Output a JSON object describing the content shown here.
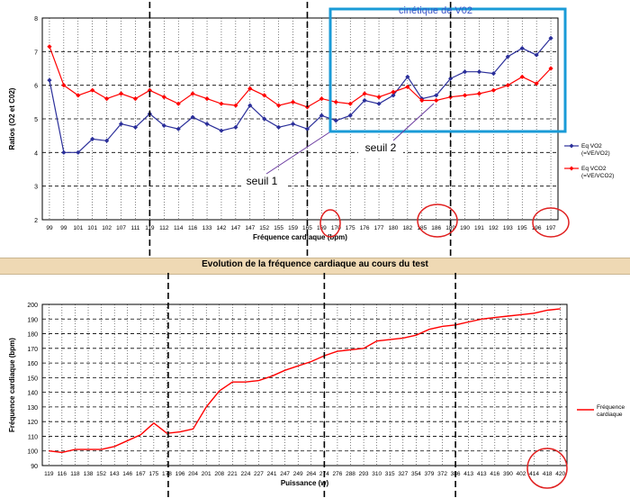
{
  "section_title": "Evolution de la fréquence cardiaque au cours du test",
  "annotations": {
    "box_label": "cinétique de V02",
    "seuil1": "seuil 1",
    "seuil2": "seuil 2"
  },
  "colors": {
    "series_vo2": "#2b2f9a",
    "series_vco2": "#ff0000",
    "hr_line": "#ff0000",
    "box": "#1a9bd7",
    "circle": "#e02020",
    "band": "#efd9b4",
    "grid": "#000000"
  },
  "chart_data": [
    {
      "type": "line",
      "ylabel": "Ratios (O2 et C02)",
      "xlabel": "Fréquence cardiaque (bpm)",
      "ylim": [
        2,
        8
      ],
      "yticks": [
        2,
        3,
        4,
        5,
        6,
        7,
        8
      ],
      "grid": true,
      "legend_position": "right",
      "categories": [
        "99",
        "99",
        "101",
        "101",
        "102",
        "107",
        "111",
        "119",
        "112",
        "114",
        "116",
        "133",
        "142",
        "147",
        "147",
        "152",
        "155",
        "159",
        "165",
        "169",
        "170",
        "175",
        "176",
        "177",
        "180",
        "182",
        "185",
        "186",
        "189",
        "190",
        "191",
        "192",
        "193",
        "195",
        "196",
        "197"
      ],
      "series": [
        {
          "name": "Eq VO2 (=VE/VO2)",
          "values": [
            6.15,
            4.0,
            4.0,
            4.4,
            4.35,
            4.85,
            4.75,
            5.15,
            4.8,
            4.7,
            5.05,
            4.85,
            4.65,
            4.75,
            5.4,
            5.0,
            4.75,
            4.85,
            4.7,
            5.1,
            4.95,
            5.1,
            5.55,
            5.45,
            5.7,
            6.25,
            5.6,
            5.7,
            6.2,
            6.4,
            6.4,
            6.35,
            6.85,
            7.1,
            6.9,
            7.4
          ]
        },
        {
          "name": "Eq VCO2 (=VE/VCO2)",
          "values": [
            7.15,
            6.0,
            5.7,
            5.85,
            5.6,
            5.75,
            5.6,
            5.85,
            5.65,
            5.45,
            5.75,
            5.6,
            5.45,
            5.4,
            5.9,
            5.7,
            5.4,
            5.5,
            5.35,
            5.6,
            5.5,
            5.45,
            5.75,
            5.65,
            5.8,
            5.95,
            5.55,
            5.55,
            5.65,
            5.7,
            5.75,
            5.85,
            6.0,
            6.25,
            6.05,
            6.5
          ]
        }
      ]
    },
    {
      "type": "line",
      "ylabel": "Fréquence cardiaque (bpm)",
      "xlabel": "Puissance (w)",
      "ylim": [
        90,
        200
      ],
      "yticks": [
        90,
        100,
        110,
        120,
        130,
        140,
        150,
        160,
        170,
        180,
        190,
        200
      ],
      "grid": true,
      "legend_position": "right",
      "categories": [
        "119",
        "116",
        "118",
        "138",
        "152",
        "143",
        "146",
        "167",
        "175",
        "178",
        "196",
        "204",
        "201",
        "208",
        "221",
        "224",
        "227",
        "241",
        "247",
        "249",
        "264",
        "274",
        "276",
        "288",
        "293",
        "310",
        "315",
        "327",
        "354",
        "379",
        "372",
        "386",
        "413",
        "413",
        "416",
        "390",
        "402",
        "414",
        "418",
        "420"
      ],
      "series": [
        {
          "name": "Fréquence cardiaque",
          "values": [
            100,
            99,
            101,
            101,
            101,
            103,
            107,
            111,
            119,
            112,
            113,
            115,
            130,
            141,
            147,
            147,
            148,
            151,
            155,
            158,
            161,
            165,
            168,
            169,
            170,
            175,
            176,
            177,
            179,
            183,
            185,
            186,
            188,
            190,
            191,
            192,
            193,
            194,
            196,
            197
          ]
        }
      ]
    }
  ]
}
